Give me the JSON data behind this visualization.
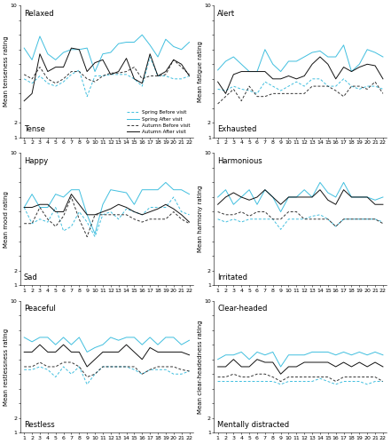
{
  "visits": [
    1,
    2,
    3,
    4,
    5,
    6,
    7,
    8,
    9,
    10,
    11,
    12,
    13,
    14,
    15,
    16,
    17,
    18,
    19,
    20,
    21,
    22
  ],
  "subplots": [
    {
      "top_label": "Relaxed",
      "bottom_label": "Tense",
      "ylabel": "Mean tenseness rating",
      "spring_before": [
        5.0,
        4.7,
        5.2,
        4.7,
        4.5,
        4.8,
        5.3,
        5.6,
        3.8,
        5.2,
        5.2,
        5.3,
        5.3,
        5.3,
        5.0,
        4.5,
        6.5,
        5.2,
        5.2,
        5.0,
        5.0,
        5.2
      ],
      "spring_after": [
        7.1,
        6.3,
        7.9,
        6.7,
        6.3,
        6.8,
        7.0,
        7.0,
        7.1,
        5.5,
        6.7,
        6.8,
        7.4,
        7.5,
        7.5,
        8.0,
        7.3,
        6.5,
        7.7,
        7.2,
        7.0,
        7.5
      ],
      "autumn_before": [
        5.3,
        5.0,
        5.8,
        5.0,
        4.7,
        5.0,
        5.5,
        5.5,
        5.0,
        4.8,
        5.2,
        5.4,
        5.4,
        5.5,
        5.8,
        5.0,
        5.2,
        5.2,
        5.3,
        6.3,
        5.8,
        5.3
      ],
      "autumn_after": [
        3.5,
        4.0,
        6.7,
        5.5,
        5.8,
        5.8,
        7.1,
        7.0,
        5.5,
        6.1,
        6.3,
        5.3,
        5.5,
        6.4,
        5.0,
        4.7,
        6.7,
        5.2,
        5.5,
        6.3,
        6.0,
        5.2
      ],
      "ylim": [
        1,
        10
      ],
      "show_legend": true
    },
    {
      "top_label": "Alert",
      "bottom_label": "Exhausted",
      "ylabel": "Mean fatigue rating",
      "spring_before": [
        4.3,
        4.2,
        4.5,
        4.3,
        4.2,
        4.0,
        4.8,
        4.5,
        4.2,
        4.5,
        4.8,
        4.5,
        5.0,
        5.0,
        4.5,
        4.5,
        5.0,
        4.5,
        4.3,
        4.5,
        4.5,
        4.3
      ],
      "spring_after": [
        5.6,
        6.2,
        6.5,
        6.0,
        5.5,
        5.5,
        7.0,
        6.0,
        5.5,
        6.2,
        6.2,
        6.5,
        6.8,
        6.9,
        6.5,
        6.5,
        7.3,
        5.5,
        6.0,
        7.0,
        6.8,
        6.5
      ],
      "autumn_before": [
        3.3,
        3.8,
        4.3,
        3.5,
        4.5,
        3.8,
        3.8,
        4.0,
        4.0,
        4.0,
        4.0,
        4.0,
        4.5,
        4.5,
        4.5,
        4.2,
        3.8,
        4.5,
        4.5,
        4.3,
        4.8,
        4.0
      ],
      "autumn_after": [
        4.8,
        4.0,
        5.3,
        5.5,
        5.5,
        5.5,
        5.5,
        5.0,
        5.0,
        5.2,
        5.0,
        5.2,
        6.0,
        6.5,
        6.0,
        5.0,
        5.8,
        5.5,
        5.8,
        6.0,
        5.9,
        5.0
      ],
      "ylim": [
        1,
        10
      ],
      "show_legend": false
    },
    {
      "top_label": "Happy",
      "bottom_label": "Sad",
      "ylabel": "Mean mood rating",
      "spring_before": [
        6.3,
        5.2,
        5.5,
        5.3,
        6.3,
        4.7,
        5.0,
        6.0,
        5.3,
        4.3,
        5.8,
        6.0,
        5.5,
        6.2,
        6.0,
        5.8,
        6.3,
        6.3,
        6.3,
        7.0,
        6.0,
        5.8
      ],
      "spring_after": [
        6.3,
        7.2,
        6.3,
        6.3,
        7.2,
        7.0,
        7.5,
        7.5,
        5.8,
        4.5,
        6.5,
        7.5,
        7.4,
        7.3,
        6.5,
        7.5,
        7.5,
        7.5,
        8.0,
        7.5,
        7.5,
        7.2
      ],
      "autumn_before": [
        5.2,
        5.2,
        6.3,
        5.5,
        5.0,
        5.7,
        7.0,
        5.5,
        4.3,
        5.8,
        5.8,
        5.8,
        5.8,
        5.8,
        5.5,
        5.3,
        5.5,
        5.5,
        5.5,
        6.0,
        5.5,
        5.2
      ],
      "autumn_after": [
        6.3,
        6.3,
        6.5,
        6.5,
        6.0,
        6.0,
        7.2,
        6.5,
        5.8,
        5.8,
        6.0,
        6.2,
        6.5,
        6.3,
        6.0,
        5.8,
        6.0,
        6.2,
        6.5,
        6.2,
        5.8,
        5.3
      ],
      "ylim": [
        1,
        10
      ],
      "show_legend": false
    },
    {
      "top_label": "Harmonious",
      "bottom_label": "Irritated",
      "ylabel": "Mean harmony rating",
      "spring_before": [
        5.5,
        5.3,
        5.5,
        5.3,
        5.5,
        5.5,
        5.5,
        5.5,
        4.8,
        5.5,
        5.5,
        5.5,
        5.7,
        5.8,
        5.5,
        5.0,
        5.5,
        5.5,
        5.5,
        5.5,
        5.5,
        5.3
      ],
      "spring_after": [
        7.0,
        7.5,
        6.5,
        7.0,
        7.5,
        6.5,
        7.5,
        7.0,
        6.0,
        7.0,
        7.0,
        7.5,
        7.0,
        8.0,
        7.3,
        7.0,
        8.0,
        7.0,
        7.0,
        7.0,
        6.8,
        7.0
      ],
      "autumn_before": [
        6.0,
        5.8,
        5.8,
        6.0,
        5.7,
        6.0,
        6.0,
        5.5,
        5.5,
        6.0,
        6.0,
        5.5,
        5.5,
        5.5,
        5.5,
        5.0,
        5.5,
        5.5,
        5.5,
        5.5,
        5.5,
        5.2
      ],
      "autumn_after": [
        6.5,
        7.0,
        7.3,
        7.0,
        6.8,
        7.0,
        7.5,
        7.0,
        6.5,
        7.0,
        7.0,
        7.0,
        7.0,
        7.5,
        6.8,
        6.5,
        7.5,
        7.0,
        7.0,
        7.0,
        6.5,
        6.5
      ],
      "ylim": [
        1,
        10
      ],
      "show_legend": false
    },
    {
      "top_label": "Peaceful",
      "bottom_label": "Restless",
      "ylabel": "Mean restlessness rating",
      "spring_before": [
        5.3,
        5.3,
        5.5,
        5.3,
        4.8,
        5.5,
        5.0,
        5.5,
        4.3,
        5.0,
        5.5,
        5.5,
        5.5,
        5.5,
        5.3,
        5.0,
        5.3,
        5.3,
        5.3,
        5.0,
        5.0,
        5.2
      ],
      "spring_after": [
        7.5,
        7.2,
        7.5,
        7.5,
        7.0,
        7.5,
        7.0,
        7.5,
        6.5,
        6.8,
        7.0,
        7.5,
        7.3,
        7.5,
        7.5,
        7.0,
        7.5,
        7.0,
        7.5,
        7.5,
        7.0,
        7.3
      ],
      "autumn_before": [
        5.5,
        5.5,
        5.8,
        5.5,
        5.5,
        5.8,
        5.8,
        5.5,
        4.8,
        5.0,
        5.5,
        5.5,
        5.5,
        5.5,
        5.5,
        5.0,
        5.3,
        5.5,
        5.5,
        5.5,
        5.3,
        5.2
      ],
      "autumn_after": [
        6.5,
        6.5,
        7.0,
        6.5,
        6.5,
        7.0,
        6.5,
        6.5,
        5.5,
        6.0,
        6.5,
        6.5,
        6.5,
        7.0,
        6.5,
        6.0,
        6.8,
        6.5,
        6.5,
        6.5,
        6.5,
        6.3
      ],
      "ylim": [
        1,
        10
      ],
      "show_legend": false
    },
    {
      "top_label": "Clear-headed",
      "bottom_label": "Mentally distracted",
      "ylabel": "Mean clear-headedness rating",
      "spring_before": [
        4.5,
        4.5,
        4.5,
        4.5,
        4.5,
        4.5,
        4.5,
        4.5,
        4.3,
        4.5,
        4.5,
        4.5,
        4.5,
        4.7,
        4.5,
        4.3,
        4.5,
        4.5,
        4.5,
        4.3,
        4.5,
        4.5
      ],
      "spring_after": [
        6.0,
        6.3,
        6.3,
        6.5,
        6.0,
        6.5,
        6.3,
        6.5,
        5.5,
        6.3,
        6.3,
        6.3,
        6.5,
        6.5,
        6.5,
        6.3,
        6.5,
        6.3,
        6.5,
        6.3,
        6.5,
        6.3
      ],
      "autumn_before": [
        4.8,
        4.8,
        5.0,
        4.8,
        4.8,
        5.0,
        5.0,
        4.8,
        4.5,
        4.8,
        4.8,
        4.8,
        4.8,
        4.8,
        4.8,
        4.5,
        4.8,
        4.8,
        4.8,
        4.8,
        4.8,
        4.5
      ],
      "autumn_after": [
        5.5,
        5.5,
        6.0,
        5.5,
        5.5,
        6.0,
        5.8,
        5.8,
        5.0,
        5.5,
        5.5,
        5.8,
        5.8,
        5.8,
        5.8,
        5.5,
        5.8,
        5.5,
        5.8,
        5.5,
        5.8,
        5.5
      ],
      "ylim": [
        1,
        10
      ],
      "show_legend": false
    }
  ],
  "spring_before_color": "#40bfdf",
  "spring_after_color": "#40bfdf",
  "autumn_before_color": "#333333",
  "autumn_after_color": "#111111",
  "legend_labels": [
    "Spring Before visit",
    "Spring After visit",
    "Autumn Before visit",
    "Autumn After visit"
  ],
  "tick_fontsize": 4.5,
  "label_fontsize": 5.0,
  "sublabel_fontsize": 6.0,
  "yticks": [
    1,
    2,
    3,
    4,
    5,
    6,
    7,
    8,
    9,
    10
  ],
  "ytick_labels_show": [
    true,
    true,
    false,
    false,
    false,
    false,
    false,
    false,
    false,
    true
  ]
}
